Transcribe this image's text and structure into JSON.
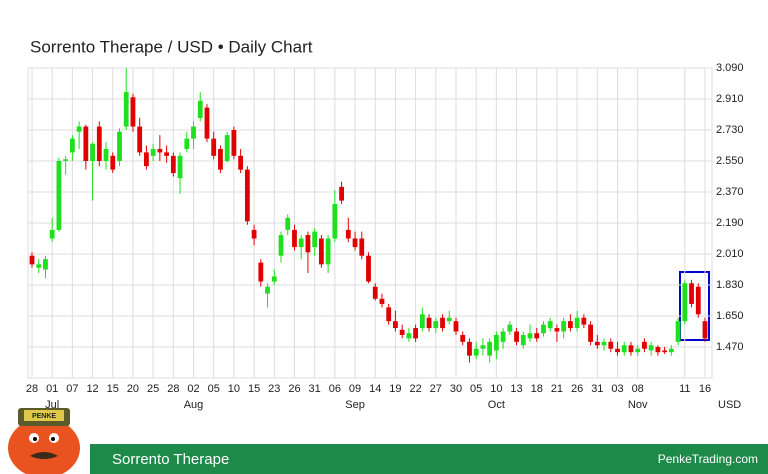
{
  "chart_data": {
    "type": "candlestick",
    "title": "Sorrento Therape / USD • Daily Chart",
    "up_color": "#1ee01e",
    "down_color": "#e00000",
    "grid": true,
    "ylim": [
      1.29,
      3.09
    ],
    "yticks": [
      {
        "value": 1.47,
        "label": "1.470"
      },
      {
        "value": 1.65,
        "label": "1.650"
      },
      {
        "value": 1.83,
        "label": "1.830"
      },
      {
        "value": 2.01,
        "label": "2.010"
      },
      {
        "value": 2.19,
        "label": "2.190"
      },
      {
        "value": 2.37,
        "label": "2.370"
      },
      {
        "value": 2.55,
        "label": "2.550"
      },
      {
        "value": 2.73,
        "label": "2.730"
      },
      {
        "value": 2.91,
        "label": "2.910"
      },
      {
        "value": 3.09,
        "label": "3.090"
      }
    ],
    "xticks": [
      {
        "value": 0,
        "label": "28"
      },
      {
        "value": 3,
        "label": "01"
      },
      {
        "value": 6,
        "label": "07"
      },
      {
        "value": 9,
        "label": "12"
      },
      {
        "value": 12,
        "label": "15"
      },
      {
        "value": 15,
        "label": "20"
      },
      {
        "value": 18,
        "label": "25"
      },
      {
        "value": 21,
        "label": "28"
      },
      {
        "value": 24,
        "label": "02"
      },
      {
        "value": 27,
        "label": "05"
      },
      {
        "value": 30,
        "label": "10"
      },
      {
        "value": 33,
        "label": "15"
      },
      {
        "value": 36,
        "label": "23"
      },
      {
        "value": 39,
        "label": "26"
      },
      {
        "value": 42,
        "label": "31"
      },
      {
        "value": 45,
        "label": "06"
      },
      {
        "value": 48,
        "label": "09"
      },
      {
        "value": 51,
        "label": "14"
      },
      {
        "value": 54,
        "label": "19"
      },
      {
        "value": 57,
        "label": "22"
      },
      {
        "value": 60,
        "label": "27"
      },
      {
        "value": 63,
        "label": "30"
      },
      {
        "value": 66,
        "label": "05"
      },
      {
        "value": 69,
        "label": "10"
      },
      {
        "value": 72,
        "label": "13"
      },
      {
        "value": 75,
        "label": "18"
      },
      {
        "value": 78,
        "label": "21"
      },
      {
        "value": 81,
        "label": "26"
      },
      {
        "value": 84,
        "label": "31"
      },
      {
        "value": 87,
        "label": "03"
      },
      {
        "value": 90,
        "label": "08"
      },
      {
        "value": 97,
        "label": "11"
      },
      {
        "value": 100,
        "label": "16"
      }
    ],
    "month_labels": [
      {
        "value": 3,
        "label": "Jul"
      },
      {
        "value": 24,
        "label": "Aug"
      },
      {
        "value": 48,
        "label": "Sep"
      },
      {
        "value": 69,
        "label": "Oct"
      },
      {
        "value": 90,
        "label": "Nov"
      }
    ],
    "currency_label": "USD",
    "candles": [
      [
        2.0,
        2.02,
        1.93,
        1.95
      ],
      [
        1.93,
        1.98,
        1.9,
        1.95
      ],
      [
        1.92,
        2.0,
        1.87,
        1.98
      ],
      [
        2.1,
        2.22,
        2.08,
        2.15
      ],
      [
        2.15,
        2.57,
        2.14,
        2.55
      ],
      [
        2.55,
        2.58,
        2.47,
        2.56
      ],
      [
        2.6,
        2.7,
        2.55,
        2.68
      ],
      [
        2.72,
        2.78,
        2.62,
        2.75
      ],
      [
        2.75,
        2.76,
        2.5,
        2.55
      ],
      [
        2.55,
        2.66,
        2.32,
        2.65
      ],
      [
        2.75,
        2.78,
        2.52,
        2.55
      ],
      [
        2.55,
        2.66,
        2.5,
        2.62
      ],
      [
        2.58,
        2.6,
        2.48,
        2.5
      ],
      [
        2.55,
        2.74,
        2.52,
        2.72
      ],
      [
        2.75,
        3.09,
        2.73,
        2.95
      ],
      [
        2.92,
        2.94,
        2.72,
        2.75
      ],
      [
        2.75,
        2.8,
        2.58,
        2.6
      ],
      [
        2.6,
        2.64,
        2.5,
        2.52
      ],
      [
        2.58,
        2.65,
        2.55,
        2.62
      ],
      [
        2.62,
        2.7,
        2.55,
        2.6
      ],
      [
        2.6,
        2.64,
        2.54,
        2.58
      ],
      [
        2.58,
        2.6,
        2.46,
        2.48
      ],
      [
        2.45,
        2.6,
        2.36,
        2.58
      ],
      [
        2.62,
        2.72,
        2.6,
        2.68
      ],
      [
        2.68,
        2.78,
        2.62,
        2.75
      ],
      [
        2.8,
        2.95,
        2.78,
        2.9
      ],
      [
        2.86,
        2.88,
        2.66,
        2.68
      ],
      [
        2.68,
        2.72,
        2.56,
        2.58
      ],
      [
        2.62,
        2.64,
        2.48,
        2.5
      ],
      [
        2.55,
        2.72,
        2.54,
        2.7
      ],
      [
        2.73,
        2.75,
        2.56,
        2.58
      ],
      [
        2.58,
        2.62,
        2.48,
        2.5
      ],
      [
        2.5,
        2.52,
        2.18,
        2.2
      ],
      [
        2.15,
        2.18,
        2.06,
        2.1
      ],
      [
        1.96,
        1.98,
        1.82,
        1.85
      ],
      [
        1.78,
        1.84,
        1.7,
        1.82
      ],
      [
        1.85,
        1.92,
        1.83,
        1.88
      ],
      [
        2.0,
        2.14,
        1.96,
        2.12
      ],
      [
        2.15,
        2.24,
        2.12,
        2.22
      ],
      [
        2.15,
        2.18,
        2.03,
        2.05
      ],
      [
        2.05,
        2.12,
        1.98,
        2.1
      ],
      [
        2.12,
        2.14,
        1.9,
        2.02
      ],
      [
        2.05,
        2.16,
        2.0,
        2.14
      ],
      [
        2.1,
        2.12,
        1.93,
        1.95
      ],
      [
        1.95,
        2.12,
        1.9,
        2.1
      ],
      [
        2.1,
        2.38,
        2.08,
        2.3
      ],
      [
        2.4,
        2.43,
        2.3,
        2.32
      ],
      [
        2.15,
        2.22,
        2.08,
        2.1
      ],
      [
        2.1,
        2.14,
        2.03,
        2.05
      ],
      [
        2.1,
        2.14,
        1.98,
        2.0
      ],
      [
        2.0,
        2.02,
        1.84,
        1.85
      ],
      [
        1.82,
        1.84,
        1.74,
        1.75
      ],
      [
        1.75,
        1.78,
        1.7,
        1.72
      ],
      [
        1.7,
        1.72,
        1.6,
        1.62
      ],
      [
        1.62,
        1.68,
        1.56,
        1.58
      ],
      [
        1.57,
        1.6,
        1.52,
        1.54
      ],
      [
        1.52,
        1.58,
        1.5,
        1.55
      ],
      [
        1.58,
        1.6,
        1.5,
        1.52
      ],
      [
        1.58,
        1.7,
        1.56,
        1.66
      ],
      [
        1.64,
        1.66,
        1.56,
        1.58
      ],
      [
        1.58,
        1.64,
        1.55,
        1.62
      ],
      [
        1.64,
        1.66,
        1.56,
        1.58
      ],
      [
        1.62,
        1.68,
        1.6,
        1.64
      ],
      [
        1.62,
        1.64,
        1.54,
        1.56
      ],
      [
        1.54,
        1.56,
        1.48,
        1.5
      ],
      [
        1.5,
        1.52,
        1.38,
        1.42
      ],
      [
        1.42,
        1.5,
        1.4,
        1.46
      ],
      [
        1.46,
        1.52,
        1.42,
        1.48
      ],
      [
        1.42,
        1.52,
        1.38,
        1.5
      ],
      [
        1.45,
        1.56,
        1.4,
        1.54
      ],
      [
        1.5,
        1.58,
        1.46,
        1.56
      ],
      [
        1.56,
        1.62,
        1.54,
        1.6
      ],
      [
        1.56,
        1.58,
        1.48,
        1.5
      ],
      [
        1.48,
        1.56,
        1.46,
        1.54
      ],
      [
        1.52,
        1.6,
        1.5,
        1.55
      ],
      [
        1.55,
        1.58,
        1.5,
        1.52
      ],
      [
        1.55,
        1.62,
        1.53,
        1.6
      ],
      [
        1.58,
        1.64,
        1.56,
        1.62
      ],
      [
        1.58,
        1.6,
        1.5,
        1.56
      ],
      [
        1.56,
        1.64,
        1.52,
        1.62
      ],
      [
        1.62,
        1.66,
        1.56,
        1.58
      ],
      [
        1.58,
        1.68,
        1.56,
        1.64
      ],
      [
        1.64,
        1.66,
        1.58,
        1.6
      ],
      [
        1.6,
        1.62,
        1.48,
        1.5
      ],
      [
        1.5,
        1.54,
        1.46,
        1.48
      ],
      [
        1.48,
        1.52,
        1.45,
        1.5
      ],
      [
        1.5,
        1.52,
        1.44,
        1.46
      ],
      [
        1.46,
        1.5,
        1.42,
        1.44
      ],
      [
        1.44,
        1.5,
        1.42,
        1.48
      ],
      [
        1.48,
        1.5,
        1.42,
        1.44
      ],
      [
        1.44,
        1.48,
        1.42,
        1.46
      ],
      [
        1.5,
        1.52,
        1.44,
        1.46
      ],
      [
        1.45,
        1.5,
        1.42,
        1.48
      ],
      [
        1.47,
        1.48,
        1.42,
        1.44
      ],
      [
        1.45,
        1.47,
        1.43,
        1.44
      ],
      [
        1.44,
        1.48,
        1.42,
        1.46
      ],
      [
        1.5,
        1.64,
        1.48,
        1.62
      ],
      [
        1.62,
        1.86,
        1.6,
        1.84
      ],
      [
        1.84,
        1.86,
        1.7,
        1.72
      ],
      [
        1.82,
        1.84,
        1.64,
        1.66
      ],
      [
        1.62,
        1.64,
        1.5,
        1.52
      ]
    ],
    "footer_name": "Sorrento Therape",
    "footer_site": "PenkeTrading.com",
    "logo_text": "PENKE"
  }
}
